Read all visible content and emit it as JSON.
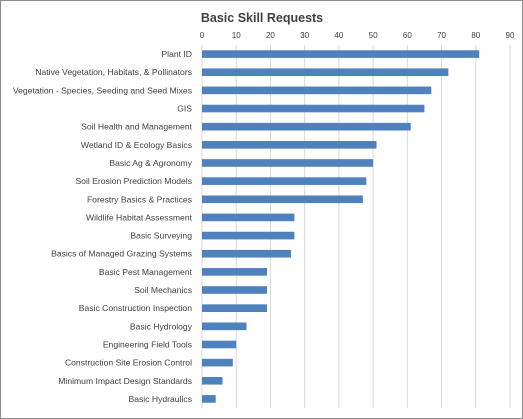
{
  "chart_data": {
    "type": "bar",
    "orientation": "horizontal",
    "title": "Basic Skill Requests",
    "xlabel": "",
    "ylabel": "",
    "xlim": [
      0,
      90
    ],
    "x_ticks": [
      0,
      10,
      20,
      30,
      40,
      50,
      60,
      70,
      80,
      90
    ],
    "x_axis_position": "top",
    "grid": true,
    "legend": "none",
    "bar_color": "#4f81bd",
    "categories": [
      "Plant ID",
      "Native Vegetation, Habitats, & Pollinators",
      "Vegetation - Species, Seeding and Seed Mixes",
      "GIS",
      "Soil Health and Management",
      "Wetland ID & Ecology Basics",
      "Basic Ag & Agronomy",
      "Soil Erosion Prediction Models",
      "Forestry Basics & Practices",
      "Wildlife Habitat Assessment",
      "Basic Surveying",
      "Basics of Managed Grazing Systems",
      "Basic Pest Management",
      "Soil Mechanics",
      "Basic Construction Inspection",
      "Basic Hydrology",
      "Engineering Field Tools",
      "Construction Site Erosion Control",
      "Minimum Impact Design Standards",
      "Basic Hydraulics"
    ],
    "values": [
      81,
      72,
      67,
      65,
      61,
      51,
      50,
      48,
      47,
      27,
      27,
      26,
      19,
      19,
      19,
      13,
      10,
      9,
      6,
      4
    ]
  }
}
